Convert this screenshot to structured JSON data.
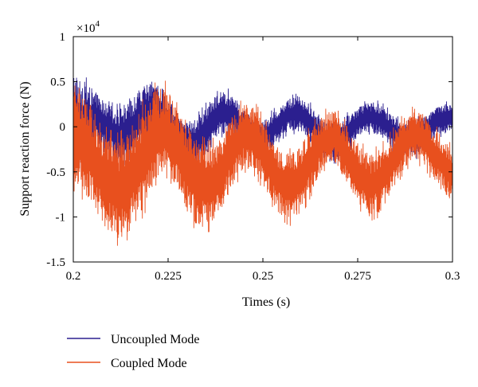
{
  "chart_data": {
    "type": "line",
    "title": "",
    "xlabel": "Times (s)",
    "ylabel": "Support reaction force (N)",
    "multiplier_text": "×10",
    "multiplier_exponent": "4",
    "xlim": [
      0.2,
      0.3
    ],
    "ylim": [
      -1.5,
      1
    ],
    "x_ticks": [
      0.2,
      0.225,
      0.25,
      0.275,
      0.3
    ],
    "x_tick_labels": [
      "0.2",
      "0.225",
      "0.25",
      "0.275",
      "0.3"
    ],
    "y_ticks": [
      -1.5,
      -1,
      -0.5,
      0,
      0.5,
      1
    ],
    "y_tick_labels": [
      "-1.5",
      "-1",
      "-0.5",
      "0",
      "0.5",
      "1"
    ],
    "grid": false,
    "legend_position": "below",
    "series": [
      {
        "name": "Uncoupled Mode",
        "color": "#2b1f8f",
        "envelope": [
          {
            "x": 0.2,
            "upper": 0.62,
            "lower": -0.55
          },
          {
            "x": 0.203,
            "upper": 0.5,
            "lower": -0.4
          },
          {
            "x": 0.206,
            "upper": 0.38,
            "lower": -0.22
          },
          {
            "x": 0.209,
            "upper": 0.25,
            "lower": -0.25
          },
          {
            "x": 0.212,
            "upper": 0.2,
            "lower": -0.45
          },
          {
            "x": 0.215,
            "upper": 0.32,
            "lower": -0.42
          },
          {
            "x": 0.218,
            "upper": 0.45,
            "lower": -0.25
          },
          {
            "x": 0.221,
            "upper": 0.52,
            "lower": -0.08
          },
          {
            "x": 0.224,
            "upper": 0.4,
            "lower": -0.15
          },
          {
            "x": 0.227,
            "upper": 0.18,
            "lower": -0.3
          },
          {
            "x": 0.23,
            "upper": 0.05,
            "lower": -0.45
          },
          {
            "x": 0.233,
            "upper": 0.12,
            "lower": -0.45
          },
          {
            "x": 0.236,
            "upper": 0.28,
            "lower": -0.25
          },
          {
            "x": 0.239,
            "upper": 0.4,
            "lower": -0.08
          },
          {
            "x": 0.242,
            "upper": 0.38,
            "lower": -0.1
          },
          {
            "x": 0.245,
            "upper": 0.15,
            "lower": -0.22
          },
          {
            "x": 0.248,
            "upper": 0.05,
            "lower": -0.32
          },
          {
            "x": 0.251,
            "upper": 0.1,
            "lower": -0.3
          },
          {
            "x": 0.254,
            "upper": 0.22,
            "lower": -0.15
          },
          {
            "x": 0.257,
            "upper": 0.32,
            "lower": -0.05
          },
          {
            "x": 0.26,
            "upper": 0.35,
            "lower": -0.06
          },
          {
            "x": 0.263,
            "upper": 0.22,
            "lower": -0.2
          },
          {
            "x": 0.266,
            "upper": 0.08,
            "lower": -0.35
          },
          {
            "x": 0.269,
            "upper": 0.05,
            "lower": -0.42
          },
          {
            "x": 0.272,
            "upper": 0.12,
            "lower": -0.3
          },
          {
            "x": 0.275,
            "upper": 0.22,
            "lower": -0.12
          },
          {
            "x": 0.278,
            "upper": 0.28,
            "lower": -0.06
          },
          {
            "x": 0.281,
            "upper": 0.26,
            "lower": -0.1
          },
          {
            "x": 0.284,
            "upper": 0.14,
            "lower": -0.24
          },
          {
            "x": 0.287,
            "upper": 0.04,
            "lower": -0.32
          },
          {
            "x": 0.29,
            "upper": 0.06,
            "lower": -0.35
          },
          {
            "x": 0.293,
            "upper": 0.14,
            "lower": -0.22
          },
          {
            "x": 0.296,
            "upper": 0.22,
            "lower": -0.1
          },
          {
            "x": 0.3,
            "upper": 0.28,
            "lower": -0.05
          }
        ]
      },
      {
        "name": "Coupled Mode",
        "color": "#e8501e",
        "envelope": [
          {
            "x": 0.2,
            "upper": 0.55,
            "lower": -0.62
          },
          {
            "x": 0.203,
            "upper": 0.38,
            "lower": -0.75
          },
          {
            "x": 0.206,
            "upper": 0.12,
            "lower": -0.95
          },
          {
            "x": 0.209,
            "upper": -0.1,
            "lower": -1.15
          },
          {
            "x": 0.212,
            "upper": -0.15,
            "lower": -1.25
          },
          {
            "x": 0.215,
            "upper": -0.02,
            "lower": -1.15
          },
          {
            "x": 0.218,
            "upper": 0.2,
            "lower": -0.95
          },
          {
            "x": 0.221,
            "upper": 0.4,
            "lower": -0.7
          },
          {
            "x": 0.224,
            "upper": 0.45,
            "lower": -0.55
          },
          {
            "x": 0.227,
            "upper": 0.3,
            "lower": -0.7
          },
          {
            "x": 0.23,
            "upper": 0.05,
            "lower": -0.95
          },
          {
            "x": 0.233,
            "upper": -0.15,
            "lower": -1.12
          },
          {
            "x": 0.236,
            "upper": -0.22,
            "lower": -1.1
          },
          {
            "x": 0.239,
            "upper": -0.1,
            "lower": -0.92
          },
          {
            "x": 0.242,
            "upper": 0.12,
            "lower": -0.65
          },
          {
            "x": 0.245,
            "upper": 0.28,
            "lower": -0.45
          },
          {
            "x": 0.248,
            "upper": 0.22,
            "lower": -0.5
          },
          {
            "x": 0.251,
            "upper": 0.0,
            "lower": -0.72
          },
          {
            "x": 0.254,
            "upper": -0.22,
            "lower": -0.95
          },
          {
            "x": 0.257,
            "upper": -0.3,
            "lower": -1.05
          },
          {
            "x": 0.26,
            "upper": -0.2,
            "lower": -0.95
          },
          {
            "x": 0.263,
            "upper": 0.0,
            "lower": -0.7
          },
          {
            "x": 0.266,
            "upper": 0.15,
            "lower": -0.45
          },
          {
            "x": 0.269,
            "upper": 0.18,
            "lower": -0.4
          },
          {
            "x": 0.272,
            "upper": 0.02,
            "lower": -0.6
          },
          {
            "x": 0.275,
            "upper": -0.18,
            "lower": -0.85
          },
          {
            "x": 0.278,
            "upper": -0.3,
            "lower": -1.0
          },
          {
            "x": 0.281,
            "upper": -0.25,
            "lower": -0.95
          },
          {
            "x": 0.284,
            "upper": -0.08,
            "lower": -0.72
          },
          {
            "x": 0.287,
            "upper": 0.1,
            "lower": -0.48
          },
          {
            "x": 0.29,
            "upper": 0.2,
            "lower": -0.35
          },
          {
            "x": 0.293,
            "upper": 0.12,
            "lower": -0.45
          },
          {
            "x": 0.296,
            "upper": -0.05,
            "lower": -0.65
          },
          {
            "x": 0.3,
            "upper": -0.25,
            "lower": -0.85
          }
        ]
      }
    ]
  }
}
